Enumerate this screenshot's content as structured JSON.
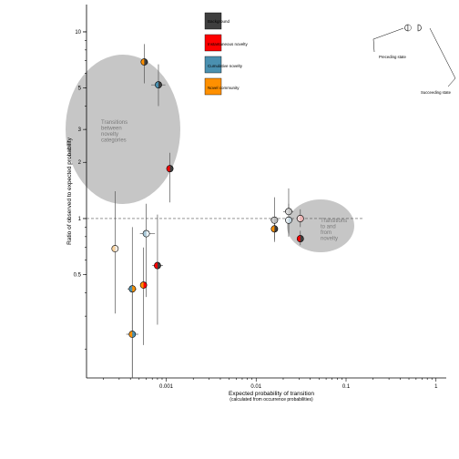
{
  "chart_data": {
    "type": "scatter",
    "xlabel": "Expected probability of transition",
    "xlabel_sub": "(calculated from occurrence probabilities)",
    "ylabel": "Ratio of observed to expected probability",
    "x_scale": "log",
    "y_scale": "log",
    "xlim": [
      0.00013,
      1.3
    ],
    "ylim": [
      0.14,
      14
    ],
    "x_ticks": [
      {
        "value": 0.001,
        "label": "0.001"
      },
      {
        "value": 0.01,
        "label": "0.01"
      },
      {
        "value": 0.1,
        "label": "0.1"
      },
      {
        "value": 1,
        "label": "1"
      }
    ],
    "y_ticks": [
      {
        "value": 0.5,
        "label": "0.5"
      },
      {
        "value": 1,
        "label": "1"
      },
      {
        "value": 2,
        "label": "2"
      },
      {
        "value": 3,
        "label": "3"
      },
      {
        "value": 5,
        "label": "5"
      },
      {
        "value": 10,
        "label": "10"
      }
    ],
    "reference_line": 1,
    "legend": [
      {
        "label": "Background",
        "color": "#3f3f3f"
      },
      {
        "label": "Instantaneous novelty",
        "color": "#ff0000"
      },
      {
        "label": "Cumulative novelty",
        "color": "#4a90b0"
      },
      {
        "label": "Novel community",
        "color": "#ff9000"
      }
    ],
    "annotations": [
      {
        "id": "between",
        "lines": [
          "Transitions",
          "between",
          "novelty",
          "categories"
        ]
      },
      {
        "id": "tofrom",
        "lines": [
          "Transitions",
          "to and",
          "from",
          "novelty"
        ]
      }
    ],
    "inset": {
      "preceding": "Preceding state",
      "succeeding": "Succeeding state"
    },
    "points": [
      {
        "x": 0.00057,
        "y": 6.9,
        "xlo": 0.00052,
        "xhi": 0.00063,
        "ylo": 5.3,
        "yhi": 8.6,
        "from": "#ff9000",
        "to": "#3f3f3f"
      },
      {
        "x": 0.00082,
        "y": 5.2,
        "xlo": 0.00068,
        "xhi": 0.00098,
        "ylo": 4.0,
        "yhi": 6.7,
        "from": "#4a90b0",
        "to": "#3f3f3f"
      },
      {
        "x": 0.0011,
        "y": 1.85,
        "xlo": 0.001,
        "xhi": 0.0012,
        "ylo": 1.22,
        "yhi": 2.25,
        "from": "#ff0000",
        "to": "#3f3f3f"
      },
      {
        "x": 0.00027,
        "y": 0.69,
        "xlo": 0.00026,
        "xhi": 0.00029,
        "ylo": 0.31,
        "yhi": 1.4,
        "from": "#ffd59e",
        "to": "#f6efe7"
      },
      {
        "x": 0.0006,
        "y": 0.83,
        "xlo": 0.00051,
        "xhi": 0.00075,
        "ylo": 0.38,
        "yhi": 1.2,
        "from": "#a8c8d8",
        "to": "#eaf2f6"
      },
      {
        "x": 0.0008,
        "y": 0.56,
        "xlo": 0.0007,
        "xhi": 0.00092,
        "ylo": 0.27,
        "yhi": 1.05,
        "from": "#ff0000",
        "to": "#3f3f3f"
      },
      {
        "x": 0.00042,
        "y": 0.42,
        "xlo": 0.00037,
        "xhi": 0.00047,
        "ylo": 0.14,
        "yhi": 0.9,
        "from": "#4a90b0",
        "to": "#ff9000"
      },
      {
        "x": 0.00056,
        "y": 0.44,
        "xlo": 0.00052,
        "xhi": 0.00061,
        "ylo": 0.21,
        "yhi": 0.7,
        "from": "#ff9000",
        "to": "#ff0000"
      },
      {
        "x": 0.00042,
        "y": 0.24,
        "xlo": 0.00036,
        "xhi": 0.00049,
        "ylo": 0.14,
        "yhi": 0.43,
        "from": "#ff9000",
        "to": "#4a90b0"
      },
      {
        "x": 0.016,
        "y": 0.98,
        "xlo": 0.0145,
        "xhi": 0.0175,
        "ylo": 0.75,
        "yhi": 1.3,
        "from": "#cfcfcf",
        "to": "#b9b9b9"
      },
      {
        "x": 0.023,
        "y": 1.09,
        "xlo": 0.02,
        "xhi": 0.026,
        "ylo": 0.83,
        "yhi": 1.45,
        "from": "#d9d9d9",
        "to": "#c5c5c5"
      },
      {
        "x": 0.023,
        "y": 0.98,
        "xlo": 0.021,
        "xhi": 0.0255,
        "ylo": 0.8,
        "yhi": 1.2,
        "from": "#e6eef3",
        "to": "#c5d6e0"
      },
      {
        "x": 0.031,
        "y": 1.0,
        "xlo": 0.029,
        "xhi": 0.034,
        "ylo": 0.9,
        "yhi": 1.12,
        "from": "#f7dcdc",
        "to": "#f0b5b5"
      },
      {
        "x": 0.016,
        "y": 0.88,
        "xlo": 0.0148,
        "xhi": 0.0172,
        "ylo": 0.77,
        "yhi": 1.0,
        "from": "#ff9000",
        "to": "#3f3f3f"
      },
      {
        "x": 0.031,
        "y": 0.78,
        "xlo": 0.029,
        "xhi": 0.033,
        "ylo": 0.72,
        "yhi": 0.86,
        "from": "#ff0000",
        "to": "#3f3f3f"
      }
    ]
  }
}
